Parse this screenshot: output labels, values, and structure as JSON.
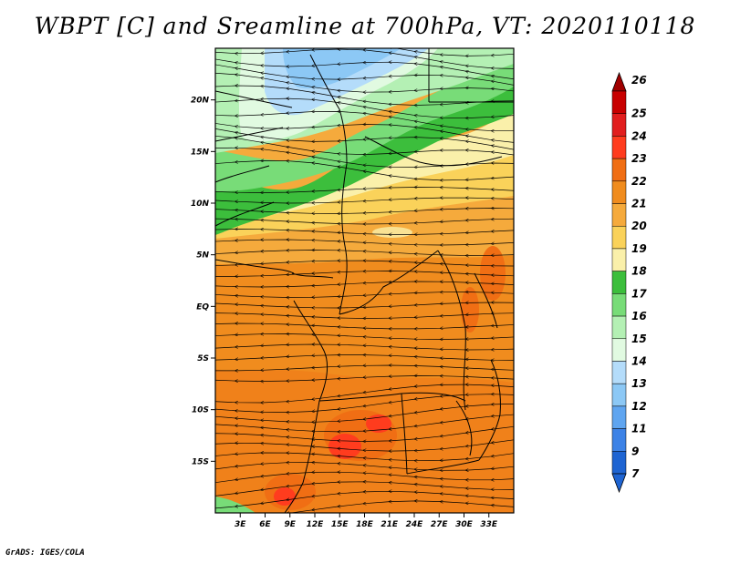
{
  "title": "WBPT [C] and Sreamline at 700hPa, VT: 2020110118",
  "credit": "GrADS: IGES/COLA",
  "map": {
    "lat_range": [
      -20,
      25
    ],
    "lon_range": [
      0,
      36
    ],
    "lat_ticks": [
      {
        "value": 20,
        "label": "20N"
      },
      {
        "value": 15,
        "label": "15N"
      },
      {
        "value": 10,
        "label": "10N"
      },
      {
        "value": 5,
        "label": "5N"
      },
      {
        "value": 0,
        "label": "EQ"
      },
      {
        "value": -5,
        "label": "5S"
      },
      {
        "value": -10,
        "label": "10S"
      },
      {
        "value": -15,
        "label": "15S"
      }
    ],
    "lon_ticks": [
      {
        "value": 3,
        "label": "3E"
      },
      {
        "value": 6,
        "label": "6E"
      },
      {
        "value": 9,
        "label": "9E"
      },
      {
        "value": 12,
        "label": "12E"
      },
      {
        "value": 15,
        "label": "15E"
      },
      {
        "value": 18,
        "label": "18E"
      },
      {
        "value": 21,
        "label": "21E"
      },
      {
        "value": 24,
        "label": "24E"
      },
      {
        "value": 27,
        "label": "27E"
      },
      {
        "value": 30,
        "label": "30E"
      },
      {
        "value": 33,
        "label": "33E"
      }
    ]
  },
  "colorbar": {
    "levels": [
      {
        "label": "26",
        "color": "#a00000"
      },
      {
        "label": "25",
        "color": "#c80000"
      },
      {
        "label": "24",
        "color": "#e11e1e"
      },
      {
        "label": "23",
        "color": "#ff3c1e"
      },
      {
        "label": "22",
        "color": "#f06e14"
      },
      {
        "label": "21",
        "color": "#f08c1e"
      },
      {
        "label": "20",
        "color": "#f5aa3c"
      },
      {
        "label": "19",
        "color": "#fad25a"
      },
      {
        "label": "18",
        "color": "#faf0aa"
      },
      {
        "label": "17",
        "color": "#3cbe3c"
      },
      {
        "label": "16",
        "color": "#78dc78"
      },
      {
        "label": "15",
        "color": "#b4f0b4"
      },
      {
        "label": "14",
        "color": "#e1fae1"
      },
      {
        "label": "13",
        "color": "#b4dcfa"
      },
      {
        "label": "12",
        "color": "#8cc8f5"
      },
      {
        "label": "11",
        "color": "#5fa5f0"
      },
      {
        "label": "9",
        "color": "#3c82e6"
      },
      {
        "label": "7",
        "color": "#1e64d2"
      }
    ],
    "top_cap_color": "#a00000",
    "bottom_cap_color": "#1e64d2"
  },
  "fields": {
    "bands": [
      {
        "name": "band-cool-blue",
        "color": "#8cc8f5"
      },
      {
        "name": "band-light-blue",
        "color": "#b4dcfa"
      },
      {
        "name": "band-pale",
        "color": "#e1fae1"
      },
      {
        "name": "band-light-green",
        "color": "#b4f0b4"
      },
      {
        "name": "band-green",
        "color": "#78dc78"
      },
      {
        "name": "band-dark-green",
        "color": "#3cbe3c"
      },
      {
        "name": "band-cream",
        "color": "#faf0aa"
      },
      {
        "name": "band-yellow",
        "color": "#fad25a"
      },
      {
        "name": "band-light-orange",
        "color": "#f5aa3c"
      },
      {
        "name": "band-orange",
        "color": "#f08c1e"
      },
      {
        "name": "band-dark-orange",
        "color": "#f06e14"
      },
      {
        "name": "band-red",
        "color": "#ff3c1e"
      }
    ]
  }
}
